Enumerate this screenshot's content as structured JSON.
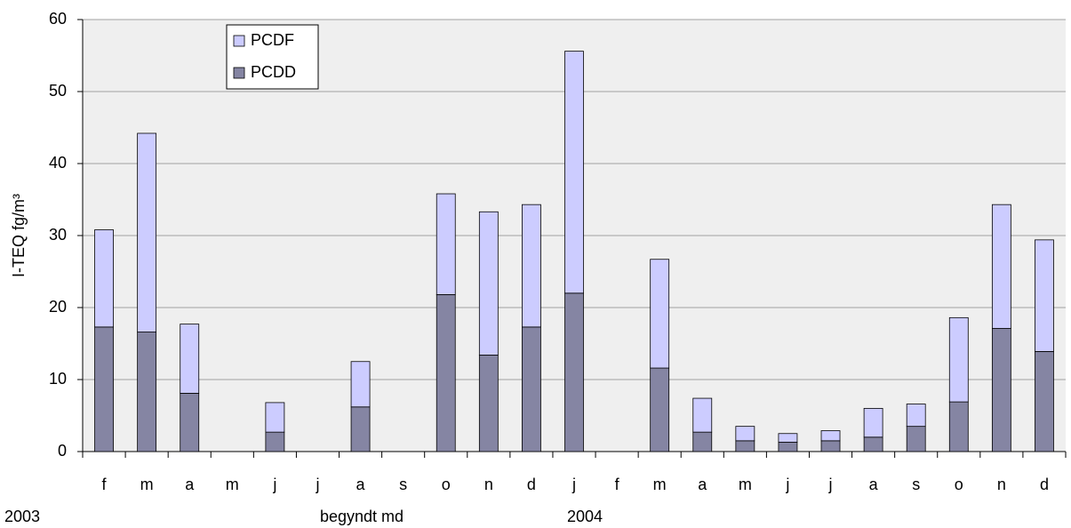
{
  "chart_data": {
    "type": "stacked_bar",
    "y_label": "I-TEQ fg/m³",
    "categories": [
      "f",
      "m",
      "a",
      "m",
      "j",
      "j",
      "a",
      "s",
      "o",
      "n",
      "d",
      "j",
      "f",
      "m",
      "a",
      "m",
      "j",
      "j",
      "a",
      "s",
      "o",
      "n",
      "d"
    ],
    "series": [
      {
        "name": "PCDD",
        "color": "#8585a3",
        "values": [
          17.3,
          16.6,
          8.1,
          null,
          2.7,
          null,
          6.2,
          null,
          21.8,
          13.4,
          17.3,
          22.0,
          null,
          11.6,
          2.7,
          1.5,
          1.3,
          1.5,
          2.0,
          3.5,
          6.9,
          17.1,
          13.9
        ]
      },
      {
        "name": "PCDF",
        "color": "#ccccff",
        "values": [
          13.5,
          27.6,
          9.6,
          null,
          4.1,
          null,
          6.3,
          null,
          14.0,
          19.9,
          17.0,
          33.6,
          null,
          15.1,
          4.7,
          2.0,
          1.2,
          1.4,
          4.0,
          3.1,
          11.7,
          17.2,
          15.5
        ]
      }
    ],
    "ylim": [
      0,
      60
    ],
    "yticks": [
      0,
      10,
      20,
      30,
      40,
      50,
      60
    ],
    "grid": true,
    "annotations": [
      "2003",
      "begyndt md",
      "2004"
    ]
  }
}
